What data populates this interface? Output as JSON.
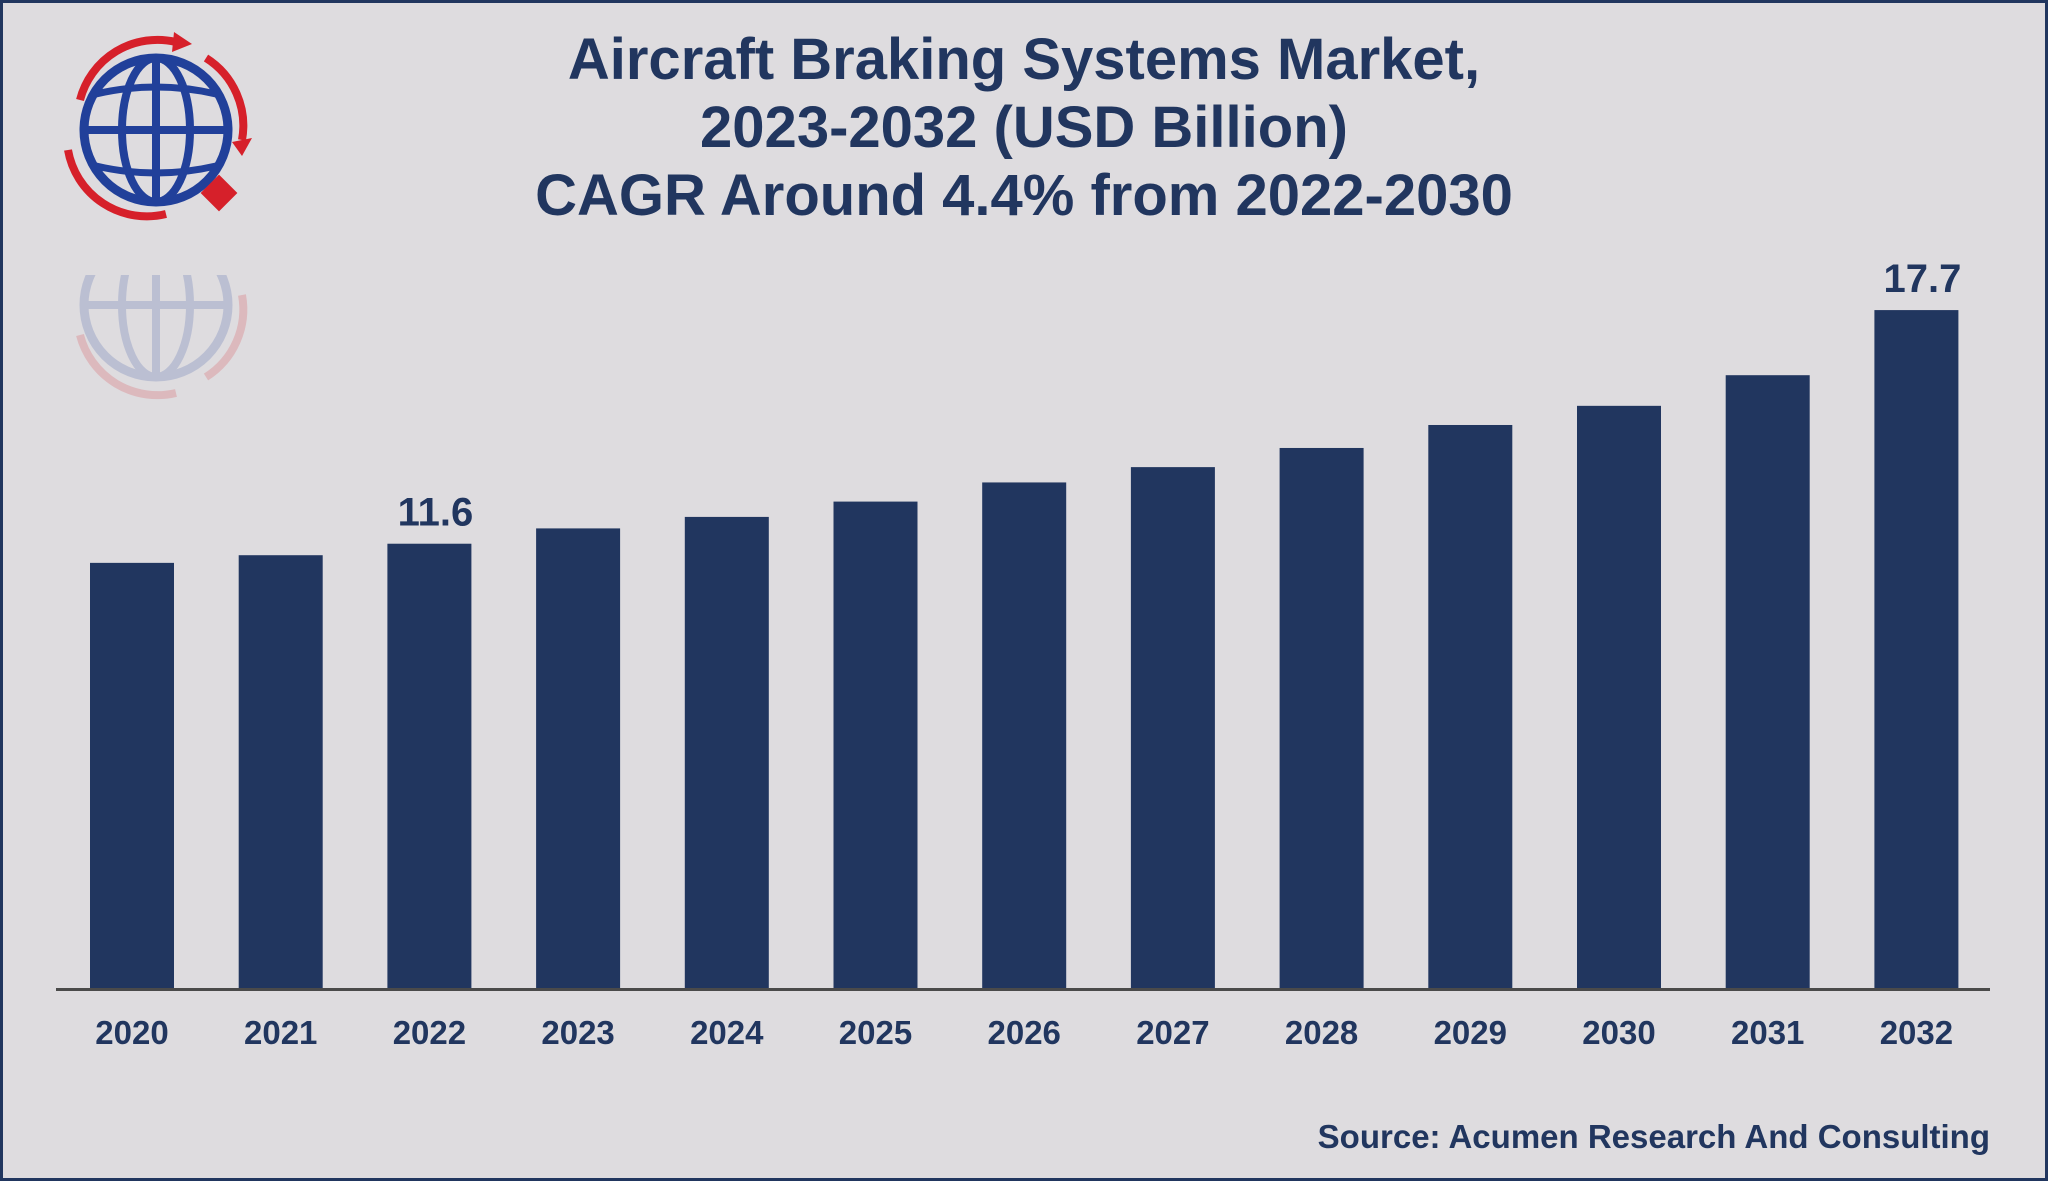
{
  "title": {
    "line1": "Aircraft Braking Systems Market,",
    "line2": "2023-2032 (USD Billion)",
    "line3": "CAGR Around 4.4% from 2022-2030"
  },
  "source": "Source: Acumen Research And Consulting",
  "colors": {
    "bar": "#21365f",
    "title": "#21365f",
    "background": "#dedcdf",
    "logo_globe": "#21409a",
    "logo_accent": "#d6202a"
  },
  "logo": {
    "icon": "globe-logo-icon"
  },
  "chart_data": {
    "type": "bar",
    "categories": [
      "2020",
      "2021",
      "2022",
      "2023",
      "2024",
      "2025",
      "2026",
      "2027",
      "2028",
      "2029",
      "2030",
      "2031",
      "2032"
    ],
    "values": [
      11.1,
      11.3,
      11.6,
      12.0,
      12.3,
      12.7,
      13.2,
      13.6,
      14.1,
      14.7,
      15.2,
      16.0,
      17.7
    ],
    "data_labels": [
      {
        "category": "2022",
        "text": "11.6"
      },
      {
        "category": "2032",
        "text": "17.7"
      }
    ],
    "grid": false,
    "legend": "none"
  }
}
